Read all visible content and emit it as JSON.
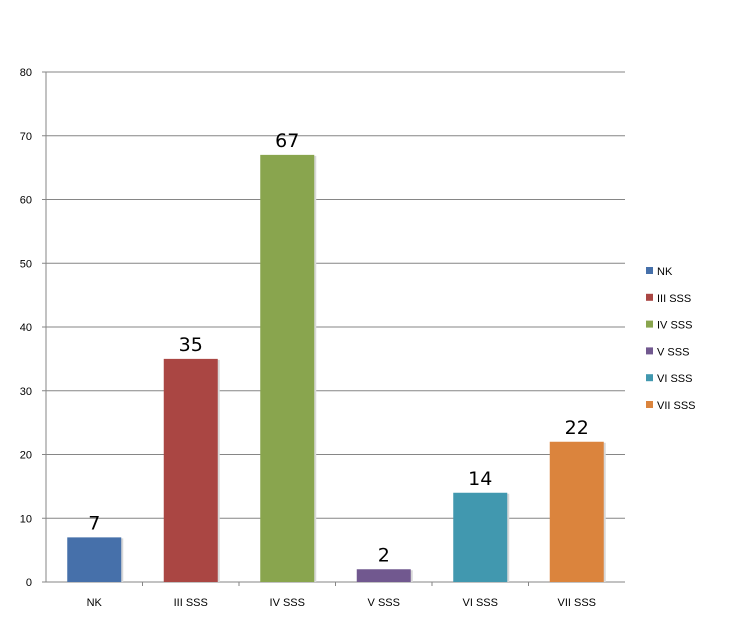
{
  "chart_data": {
    "type": "bar",
    "categories": [
      "NK",
      "III SSS",
      "IV SSS",
      "V SSS",
      "VI SSS",
      "VII SSS"
    ],
    "values": [
      7,
      35,
      67,
      2,
      14,
      22
    ],
    "colors": [
      "#4670AA",
      "#AA4643",
      "#89A54E",
      "#71588F",
      "#4198AF",
      "#DB843D"
    ],
    "ylim": [
      0,
      80
    ],
    "yticks": [
      0,
      10,
      20,
      30,
      40,
      50,
      60,
      70,
      80
    ],
    "grid": true,
    "legend_position": "right",
    "data_labels": true
  }
}
